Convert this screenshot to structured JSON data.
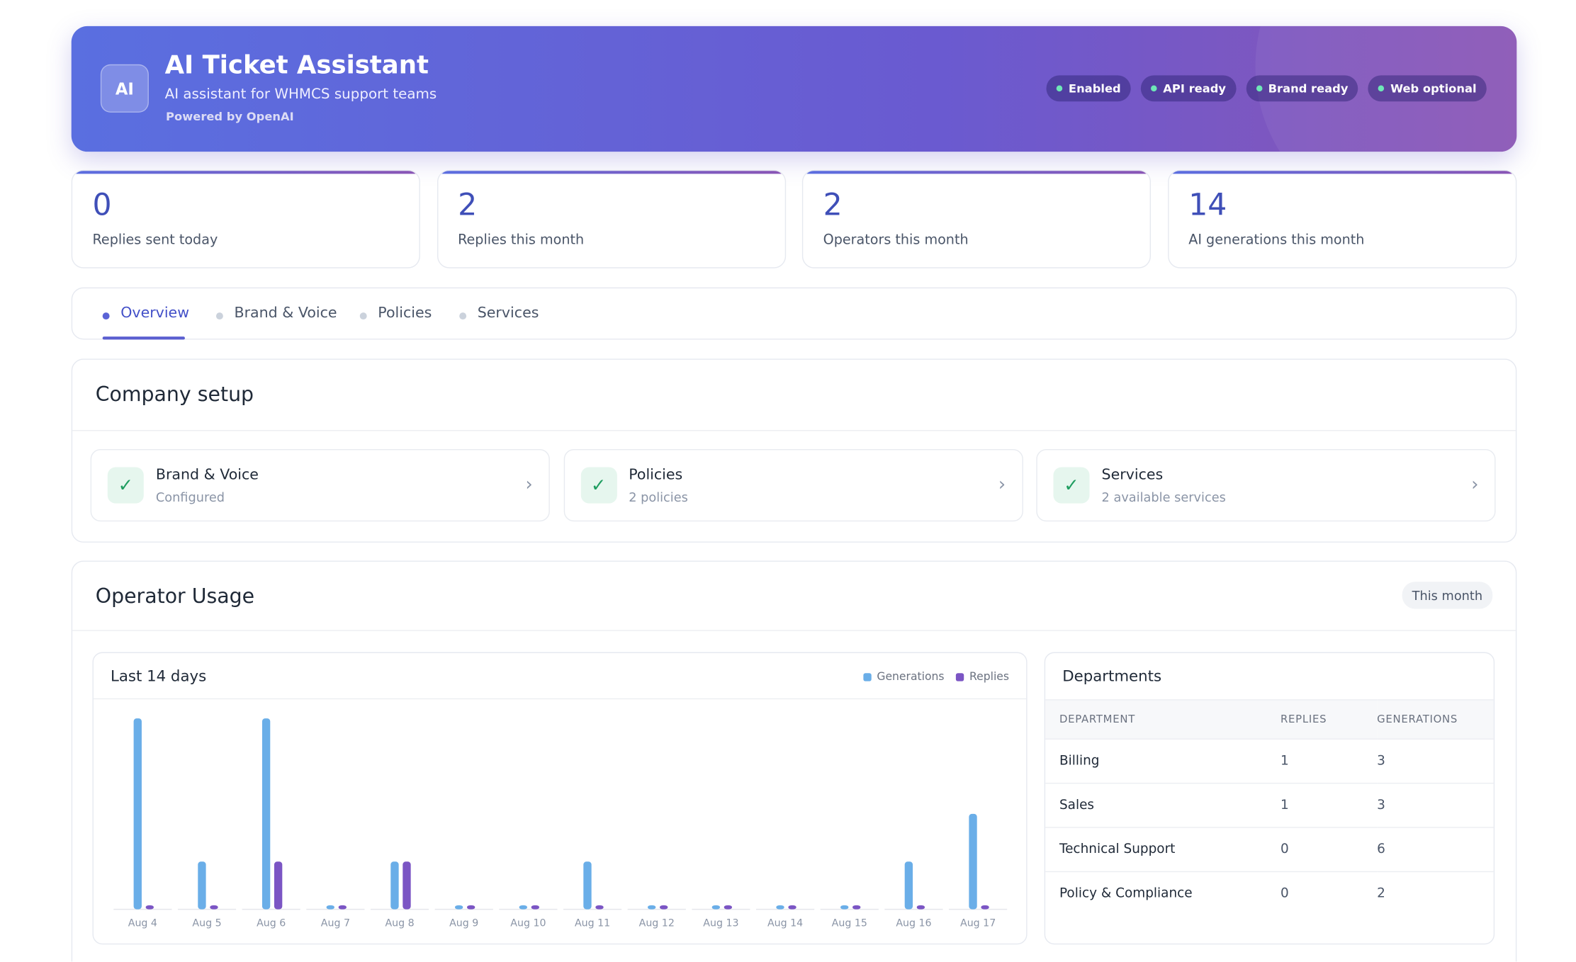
{
  "header": {
    "logo": "AI",
    "title": "AI Ticket Assistant",
    "subtitle": "AI assistant for WHMCS support teams",
    "powered": "Powered by OpenAI",
    "badges": [
      "Enabled",
      "API ready",
      "Brand ready",
      "Web optional"
    ]
  },
  "stats": [
    {
      "value": 0,
      "label": "Replies sent today"
    },
    {
      "value": 2,
      "label": "Replies this month"
    },
    {
      "value": 2,
      "label": "Operators this month"
    },
    {
      "value": 14,
      "label": "AI generations this month"
    }
  ],
  "tabs": [
    "Overview",
    "Brand & Voice",
    "Policies",
    "Services"
  ],
  "setup": {
    "title": "Company setup",
    "items": [
      {
        "title": "Brand & Voice",
        "subtitle": "Configured"
      },
      {
        "title": "Policies",
        "subtitle": "2 policies"
      },
      {
        "title": "Services",
        "subtitle": "2 available services"
      }
    ]
  },
  "usage": {
    "title": "Operator Usage",
    "period": "This month"
  },
  "chart_data": {
    "type": "bar",
    "title": "Last 14 days",
    "categories": [
      "Aug 4",
      "Aug 5",
      "Aug 6",
      "Aug 7",
      "Aug 8",
      "Aug 9",
      "Aug 10",
      "Aug 11",
      "Aug 12",
      "Aug 13",
      "Aug 14",
      "Aug 15",
      "Aug 16",
      "Aug 17"
    ],
    "series": [
      {
        "name": "Generations",
        "color": "#6aaee8",
        "values": [
          4,
          1,
          4,
          0,
          1,
          0,
          0,
          1,
          0,
          0,
          0,
          0,
          1,
          2
        ]
      },
      {
        "name": "Replies",
        "color": "#7b55c4",
        "values": [
          0,
          0,
          1,
          0,
          1,
          0,
          0,
          0,
          0,
          0,
          0,
          0,
          0,
          0
        ]
      }
    ],
    "ylim": [
      0,
      4
    ],
    "legend": "top-right"
  },
  "departments": {
    "title": "Departments",
    "columns": [
      "DEPARTMENT",
      "REPLIES",
      "GENERATIONS"
    ],
    "rows": [
      [
        "Billing",
        "1",
        "3"
      ],
      [
        "Sales",
        "1",
        "3"
      ],
      [
        "Technical Support",
        "0",
        "6"
      ],
      [
        "Policy & Compliance",
        "0",
        "2"
      ]
    ]
  }
}
